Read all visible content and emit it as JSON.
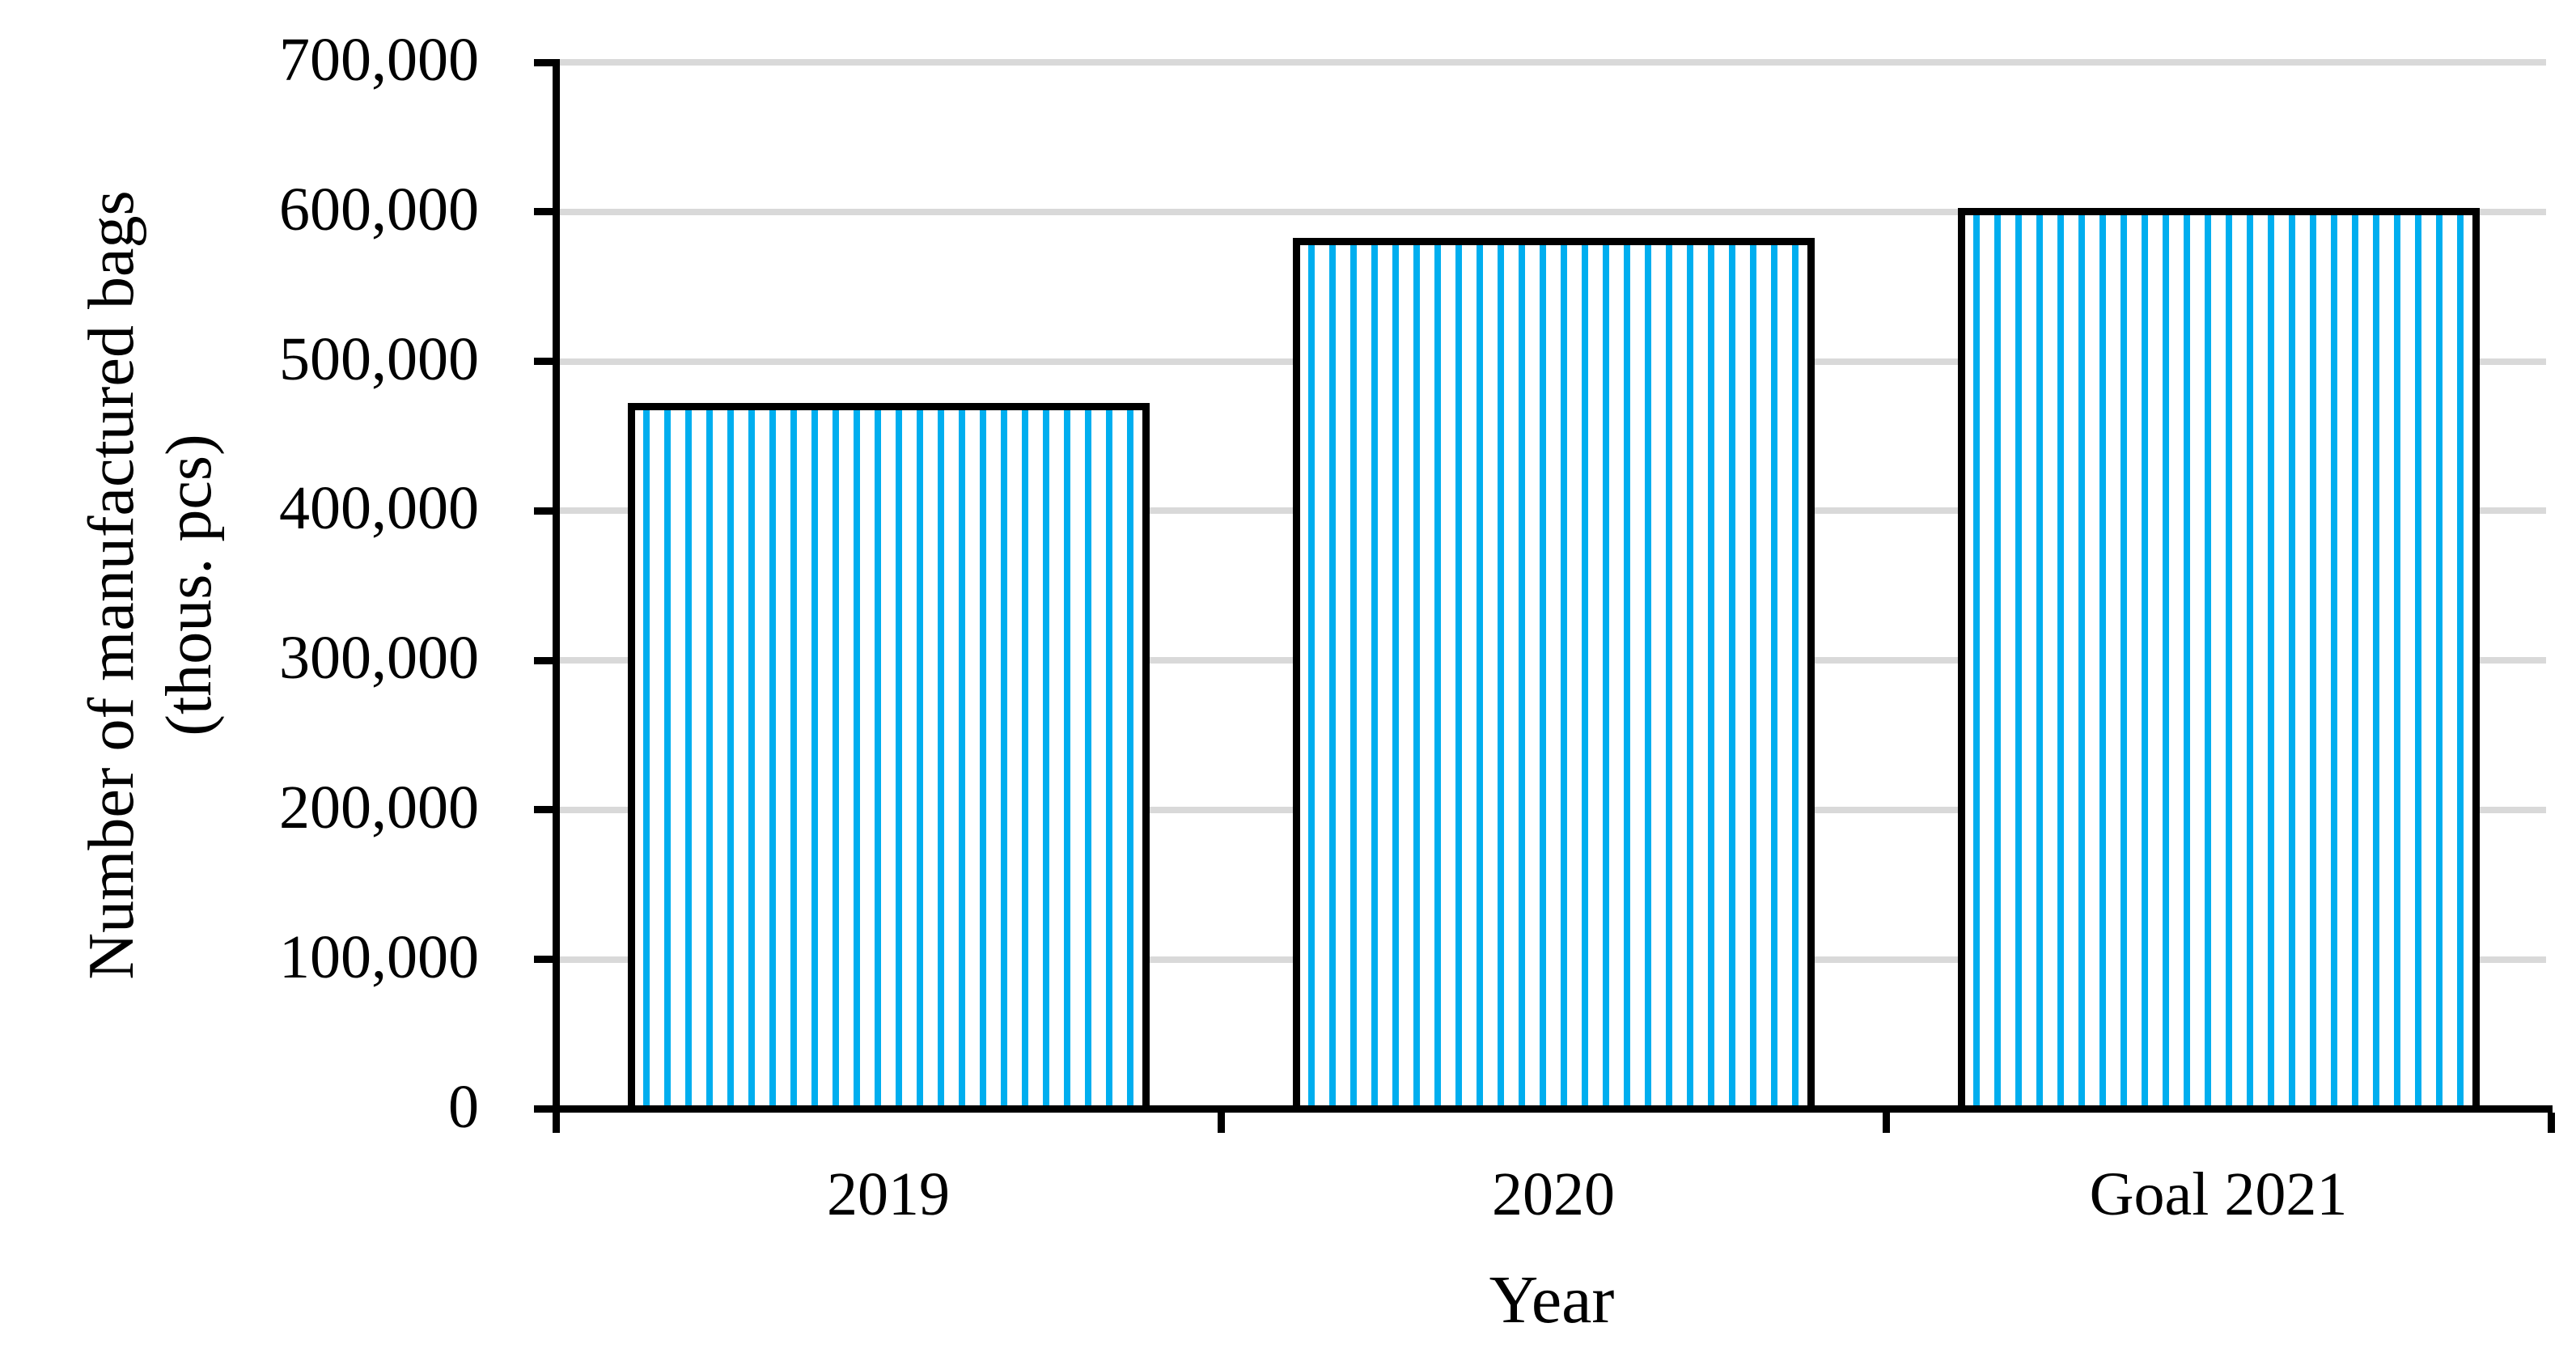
{
  "figure": {
    "background": "#FFFFFF",
    "title": ""
  },
  "chart_data": {
    "type": "bar",
    "categories": [
      "2019",
      "2020",
      "Goal 2021"
    ],
    "values": [
      470000,
      580000,
      600000
    ],
    "xlabel": "Year",
    "ylabel": "Number of manufactured bags (thous. pcs)",
    "ylabel_lines": [
      "Number of manufactured bags",
      "(thous. pcs)"
    ],
    "ylim": [
      0,
      700000
    ],
    "y_ticks": [
      0,
      100000,
      200000,
      300000,
      400000,
      500000,
      600000,
      700000
    ],
    "y_tick_labels": [
      "0",
      "100,000",
      "200,000",
      "300,000",
      "400,000",
      "500,000",
      "600,000",
      "700,000"
    ],
    "grid": "horizontal",
    "legend_position": "none",
    "bar_fill": {
      "pattern": "vertical-stripes",
      "stripe_color": "#00AEEF",
      "background_color": "#FFFFFF",
      "border_color": "#000000"
    },
    "gridline_color": "#D9D9D9",
    "axis_color": "#000000",
    "text_color": "#000000"
  }
}
